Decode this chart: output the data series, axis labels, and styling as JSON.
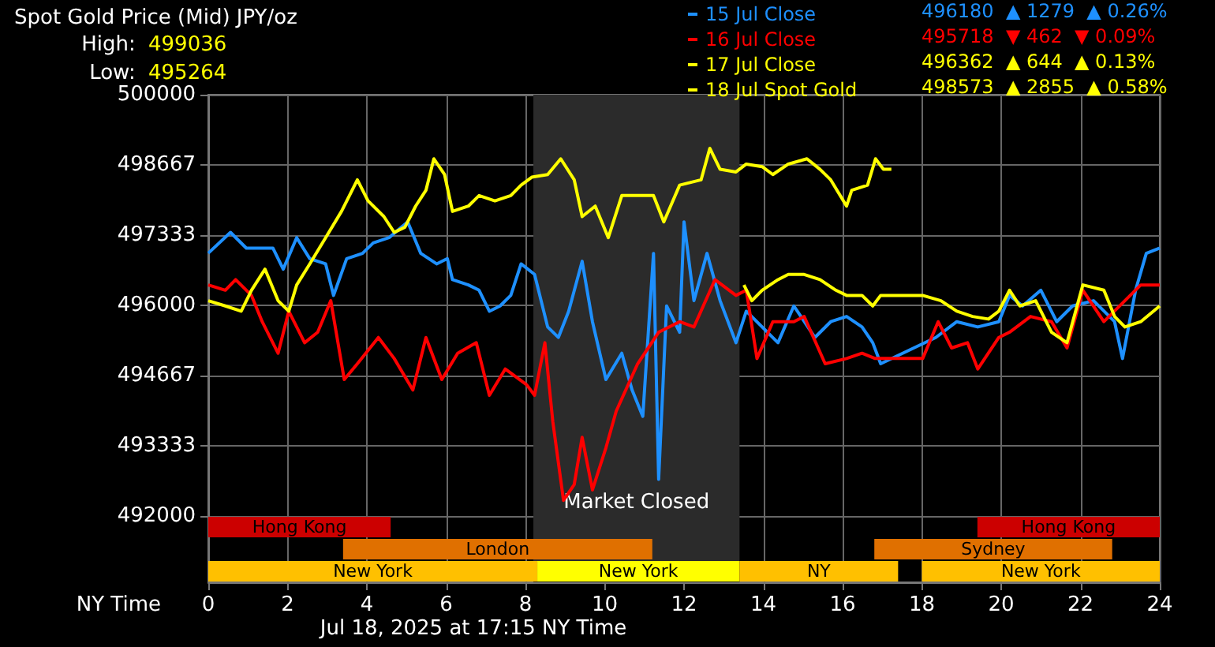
{
  "chart_data": {
    "type": "line",
    "title": "Spot Gold Price (Mid) JPY/oz",
    "xlabel": "NY Time",
    "xlim": [
      0,
      24
    ],
    "xticks": [
      0,
      2,
      4,
      6,
      8,
      10,
      12,
      14,
      16,
      18,
      20,
      22,
      24
    ],
    "ylim": [
      490740,
      500000
    ],
    "yticks": [
      492000,
      493333,
      494667,
      496000,
      497333,
      498667,
      500000
    ],
    "grid": true,
    "legend": "top right",
    "marker": "none",
    "annotations": [
      "High: 499036",
      "Low: 495264",
      "496180  ▲ 1279  ▲ 0.26%",
      "495718  ▼ 462  ▼ 0.09%",
      "496362  ▲ 644  ▲ 0.13%",
      "498573  ▲ 2855  ▲ 0.58%",
      "Jul 18, 2025 at 17:15 NY Time"
    ],
    "bands": [
      {
        "axis": "x",
        "from": 8.2,
        "to": 13.4,
        "label": "Market Closed",
        "color": "#2b2b2b"
      },
      {
        "axis": "x",
        "from": 0,
        "to": 4.6,
        "label": "Hong Kong",
        "color": "#cc0000"
      },
      {
        "axis": "x",
        "from": 19.4,
        "to": 24,
        "label": "Hong Kong",
        "color": "#cc0000"
      },
      {
        "axis": "x",
        "from": 3.4,
        "to": 11.2,
        "label": "London",
        "color": "#e07000"
      },
      {
        "axis": "x",
        "from": 16.8,
        "to": 22.8,
        "label": "Sydney",
        "color": "#e07000"
      },
      {
        "axis": "x",
        "from": 0,
        "to": 8.3,
        "label": "New York",
        "color": "#ffc000"
      },
      {
        "axis": "x",
        "from": 8.3,
        "to": 13.4,
        "label": "New York",
        "color": "#ffff00"
      },
      {
        "axis": "x",
        "from": 13.4,
        "to": 17.4,
        "label": "NY",
        "color": "#ffc000"
      },
      {
        "axis": "x",
        "from": 18,
        "to": 24,
        "label": "New York",
        "color": "#ffc000"
      }
    ],
    "series": [
      {
        "name": "15 Jul Close",
        "color": "#1e90ff",
        "x": [
          0,
          0.56,
          0.96,
          1.63,
          1.89,
          2.23,
          2.56,
          2.96,
          3.16,
          3.49,
          3.89,
          4.16,
          4.56,
          5.03,
          5.36,
          5.76,
          6.03,
          6.16,
          6.56,
          6.83,
          7.09,
          7.36,
          7.63,
          7.89,
          8.23,
          8.56,
          8.83,
          9.09,
          9.43,
          9.69,
          10.03,
          10.43,
          10.69,
          10.96,
          11.23,
          11.36,
          11.56,
          11.89,
          12,
          12.25,
          12.58,
          12.91,
          13.31,
          13.57,
          13.97,
          14.37,
          14.77,
          15.3,
          15.7,
          16.1,
          16.49,
          16.76,
          16.96,
          18.35,
          18.88,
          19.41,
          19.94,
          20.21,
          20.54,
          21,
          21.4,
          21.8,
          22.33,
          22.86,
          23.06,
          23.39,
          23.66,
          24
        ],
        "values": [
          496990,
          497385,
          497086,
          497086,
          496687,
          497285,
          496886,
          496787,
          496188,
          496886,
          496986,
          497186,
          497285,
          497585,
          496986,
          496787,
          496886,
          496487,
          496387,
          496287,
          495888,
          495988,
          496188,
          496787,
          496587,
          495589,
          495390,
          495888,
          496836,
          495689,
          494590,
          495090,
          494391,
          493892,
          496986,
          492695,
          495988,
          495489,
          497585,
          496088,
          496986,
          496088,
          495290,
          495888,
          495589,
          495290,
          495988,
          495389,
          495689,
          495788,
          495589,
          495290,
          494890,
          495389,
          495689,
          495589,
          495689,
          496188,
          495988,
          496287,
          495689,
          495988,
          496088,
          495689,
          494990,
          496287,
          496986,
          497086
        ]
      },
      {
        "name": "16 Jul Close",
        "color": "#ff0000",
        "x": [
          0,
          0.43,
          0.69,
          1.09,
          1.36,
          1.76,
          2.03,
          2.43,
          2.76,
          3.09,
          3.43,
          3.76,
          4.29,
          4.69,
          5.16,
          5.49,
          5.89,
          6.29,
          6.76,
          7.09,
          7.49,
          8.03,
          8.23,
          8.49,
          8.69,
          8.96,
          9.23,
          9.43,
          9.69,
          10.03,
          10.29,
          10.83,
          11.36,
          11.89,
          12.25,
          12.78,
          13.31,
          13.57,
          13.84,
          14.24,
          14.77,
          15.03,
          15.56,
          16.1,
          16.49,
          16.82,
          18.02,
          18.41,
          18.75,
          19.15,
          19.41,
          19.94,
          20.21,
          20.74,
          21.27,
          21.66,
          22.06,
          22.59,
          23.12,
          23.52,
          24
        ],
        "values": [
          496387,
          496287,
          496487,
          496188,
          495689,
          495090,
          495888,
          495290,
          495489,
          496088,
          494590,
          494890,
          495389,
          494990,
          494391,
          495389,
          494590,
          495090,
          495290,
          494291,
          494790,
          494491,
          494291,
          495290,
          493792,
          492295,
          492595,
          493493,
          492495,
          493294,
          493992,
          494890,
          495489,
          495689,
          495589,
          496487,
          496188,
          496287,
          494990,
          495689,
          495689,
          495788,
          494890,
          494990,
          495090,
          494990,
          494990,
          495689,
          495190,
          495290,
          494790,
          495389,
          495489,
          495788,
          495689,
          495190,
          496287,
          495689,
          496088,
          496387,
          496387
        ]
      },
      {
        "name": "17 Jul Close",
        "color": "#ffff00",
        "x": [
          13.51,
          13.71,
          13.97,
          14.37,
          14.63,
          15.03,
          15.43,
          15.83,
          16.1,
          16.49,
          16.76,
          16.96,
          18.02,
          18.48,
          18.88,
          19.28,
          19.68,
          19.94,
          20.21,
          20.47,
          20.87,
          21.27,
          21.66,
          22.06,
          22.59,
          22.86,
          23.12,
          23.52,
          24
        ],
        "values": [
          496387,
          496088,
          496287,
          496487,
          496587,
          496587,
          496487,
          496287,
          496188,
          496188,
          495988,
          496188,
          496188,
          496088,
          495888,
          495788,
          495739,
          495888,
          496287,
          495988,
          496088,
          495489,
          495290,
          496387,
          496287,
          495788,
          495589,
          495689,
          495988
        ]
      },
      {
        "name": "18 Jul Spot Gold",
        "color": "#ffff00",
        "x": [
          0,
          0.43,
          0.83,
          1.09,
          1.43,
          1.76,
          2.03,
          2.23,
          2.56,
          2.96,
          3.36,
          3.76,
          4.03,
          4.43,
          4.69,
          4.96,
          5.23,
          5.49,
          5.69,
          5.96,
          6.16,
          6.56,
          6.83,
          7.23,
          7.63,
          7.89,
          8.16,
          8.56,
          8.89,
          9.23,
          9.43,
          9.76,
          10.09,
          10.43,
          10.83,
          11.23,
          11.49,
          11.89,
          12.43,
          12.65,
          12.91,
          13.31,
          13.57,
          13.97,
          14.24,
          14.63,
          15.1,
          15.43,
          15.7,
          16.1,
          16.23,
          16.63,
          16.83,
          17.03,
          17.23
        ],
        "values": [
          496088,
          495988,
          495888,
          496287,
          496687,
          496088,
          495888,
          496387,
          496787,
          497285,
          497784,
          498383,
          497984,
          497685,
          497385,
          497485,
          497884,
          498184,
          498782,
          498483,
          497784,
          497884,
          498084,
          497984,
          498084,
          498283,
          498433,
          498483,
          498782,
          498383,
          497685,
          497884,
          497285,
          498084,
          498084,
          498084,
          497585,
          498283,
          498383,
          498982,
          498583,
          498533,
          498682,
          498633,
          498483,
          498682,
          498782,
          498583,
          498383,
          497884,
          498184,
          498283,
          498782,
          498583,
          498583
        ]
      }
    ]
  }
}
